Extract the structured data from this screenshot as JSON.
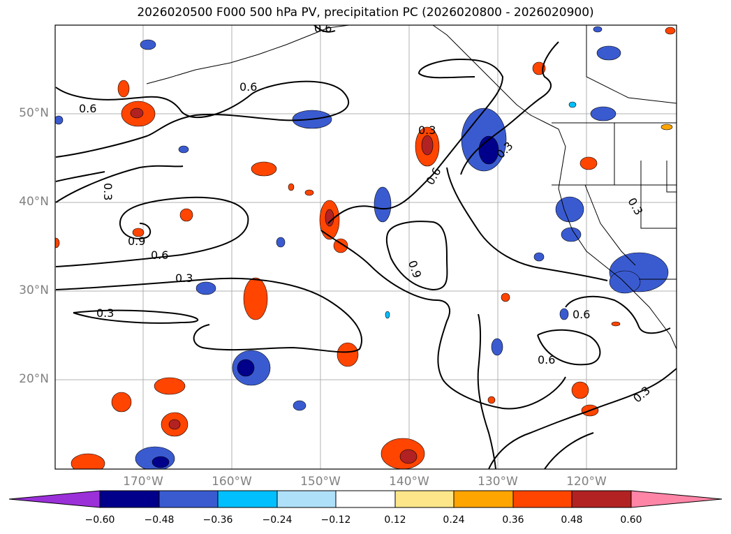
{
  "title": "2026020500 F000 500 hPa PV, precipitation PC (2026020800 - 2026020900)",
  "axes": {
    "lat_ticks": [
      "50°N",
      "40°N",
      "30°N",
      "20°N"
    ],
    "lon_ticks": [
      "170°W",
      "160°W",
      "150°W",
      "140°W",
      "130°W",
      "120°W"
    ]
  },
  "contour_labels": [
    "0.6",
    "0.6",
    "0.3",
    "0.3",
    "0.9",
    "0.6",
    "0.3",
    "0.3",
    "0.6",
    "0.3",
    "0.9",
    "0.6",
    "0.6",
    "0.3",
    "0.3",
    "0.6"
  ],
  "colorbar": {
    "ticks": [
      "−0.60",
      "−0.48",
      "−0.36",
      "−0.24",
      "−0.12",
      "0.12",
      "0.24",
      "0.36",
      "0.48",
      "0.60"
    ],
    "colors": [
      "#9b30d9",
      "#00008b",
      "#3a5bd0",
      "#00bfff",
      "#afe0fa",
      "#ffffff",
      "#fde68a",
      "#ffa500",
      "#ff4500",
      "#b22222",
      "#ff85a7"
    ]
  }
}
